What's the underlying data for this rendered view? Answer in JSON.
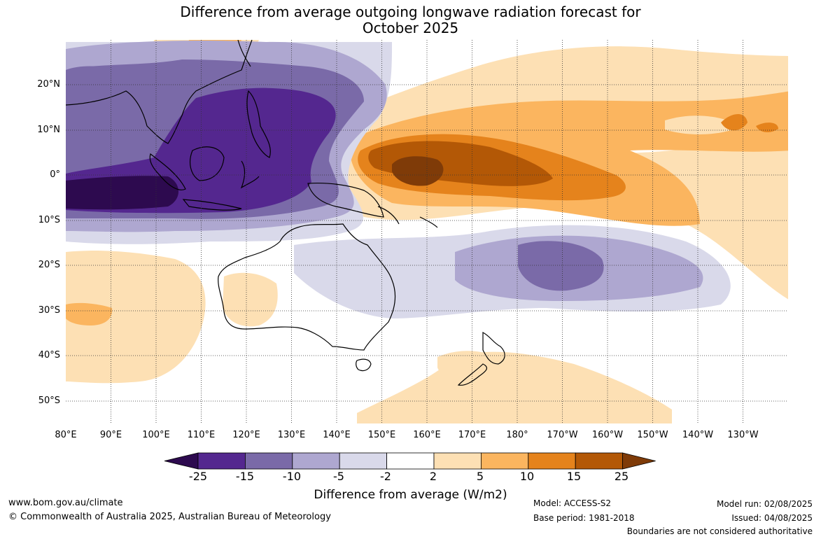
{
  "title": {
    "line1": "Difference from average outgoing longwave radiation forecast for",
    "line2": "October 2025"
  },
  "map": {
    "lat_labels": [
      "20°N",
      "10°N",
      "0°",
      "10°S",
      "20°S",
      "30°S",
      "40°S",
      "50°S"
    ],
    "lon_labels": [
      "80°E",
      "90°E",
      "100°E",
      "110°E",
      "120°E",
      "130°E",
      "140°E",
      "150°E",
      "160°E",
      "170°E",
      "180°",
      "170°W",
      "160°W",
      "150°W",
      "140°W",
      "130°W"
    ],
    "lat_range": [
      -55,
      30
    ],
    "lon_range": [
      80,
      240
    ],
    "grid": true
  },
  "colorbar": {
    "ticks": [
      "-25",
      "-15",
      "-10",
      "-5",
      "-2",
      "2",
      "5",
      "10",
      "15",
      "25"
    ],
    "colors": [
      "#2d0a4f",
      "#54278f",
      "#7a6aa8",
      "#aea7d0",
      "#d9d9ea",
      "#ffffff",
      "#fde0b4",
      "#fbb55f",
      "#e5831c",
      "#b35806",
      "#7f3b08"
    ],
    "label": "Difference from average (W/m2)"
  },
  "footer": {
    "website": "www.bom.gov.au/climate",
    "copyright": "© Commonwealth of Australia 2025, Australian Bureau of Meteorology",
    "model": "Model: ACCESS-S2",
    "base_period": "Base period: 1981-2018",
    "model_run": "Model run: 02/08/2025",
    "issued": "Issued: 04/08/2025",
    "boundaries": "Boundaries are not considered authoritative"
  }
}
